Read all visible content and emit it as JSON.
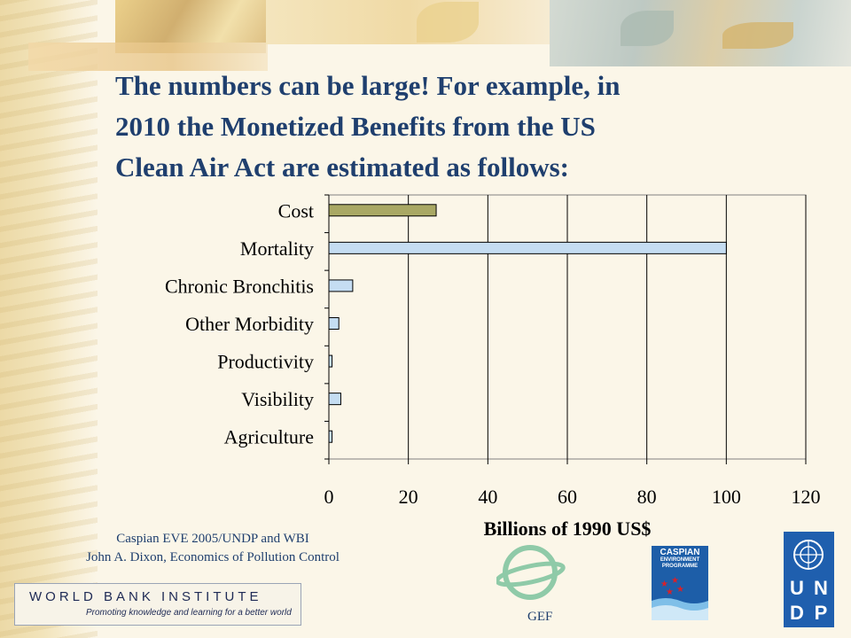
{
  "slide": {
    "title_lines": [
      "The numbers can be large! For example, in",
      "2010 the Monetized Benefits from the US",
      "Clean Air Act are estimated as follows:"
    ],
    "citation_lines": [
      "Caspian EVE 2005/UNDP and WBI",
      "John A. Dixon, Economics of Pollution Control"
    ],
    "wbi_name": "WORLD BANK INSTITUTE",
    "wbi_tagline": "Promoting knowledge and learning for a better world",
    "gef_label": "GEF",
    "caspian_label": "CASPIAN",
    "caspian_sub": "ENVIRONMENT PROGRAMME",
    "undp_letters": [
      "U",
      "N",
      "D",
      "P"
    ]
  },
  "colors": {
    "title": "#1f3f6e",
    "cost_bar": "#a9a864",
    "benefit_bar": "#c5ddf2",
    "gridline": "#000000"
  },
  "chart_data": {
    "type": "bar",
    "orientation": "horizontal",
    "categories": [
      "Cost",
      "Mortality",
      "Chronic Bronchitis",
      "Other Morbidity",
      "Productivity",
      "Visibility",
      "Agriculture"
    ],
    "values": [
      27,
      100,
      6,
      2.5,
      0.8,
      3,
      0.8
    ],
    "xlabel": "Billions of 1990 US$",
    "xlim": [
      0,
      120
    ],
    "xticks": [
      0,
      20,
      40,
      60,
      80,
      100,
      120
    ],
    "grid": "vertical"
  }
}
